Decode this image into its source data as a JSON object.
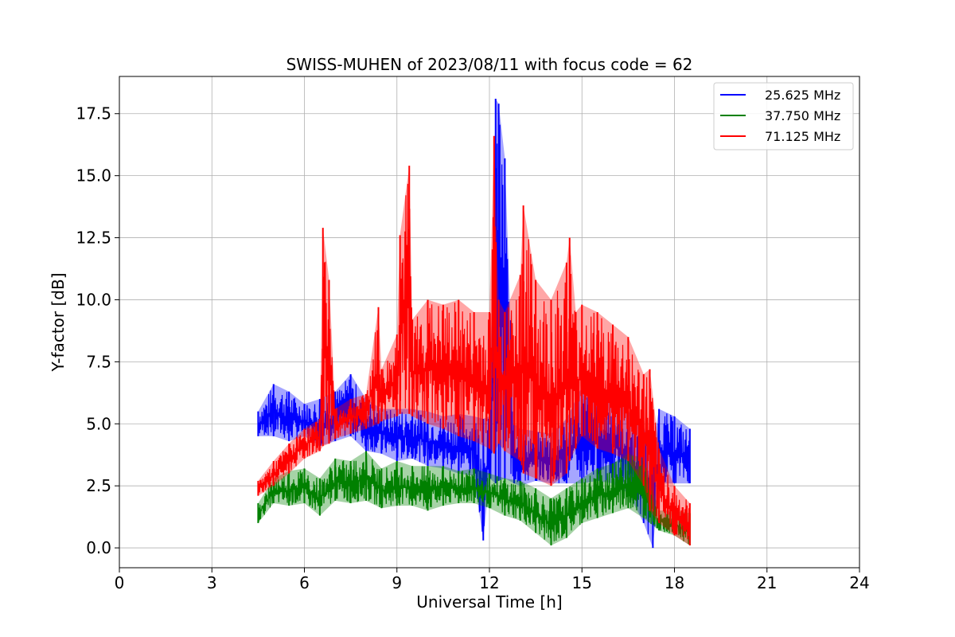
{
  "chart_data": {
    "type": "line",
    "title": "SWISS-MUHEN of 2023/08/11 with focus code = 62",
    "xlabel": "Universal Time [h]",
    "ylabel": "Y-factor [dB]",
    "xlim": [
      0,
      24
    ],
    "ylim": [
      -0.8,
      19.0
    ],
    "xticks": [
      0,
      3,
      6,
      9,
      12,
      15,
      18,
      21,
      24
    ],
    "xtick_labels": [
      "0",
      "3",
      "6",
      "9",
      "12",
      "15",
      "18",
      "21",
      "24"
    ],
    "yticks": [
      0.0,
      2.5,
      5.0,
      7.5,
      10.0,
      12.5,
      15.0,
      17.5
    ],
    "ytick_labels": [
      "0.0",
      "2.5",
      "5.0",
      "7.5",
      "10.0",
      "12.5",
      "15.0",
      "17.5"
    ],
    "grid": true,
    "legend_position": "top-right",
    "series": [
      {
        "name": "25.625 MHz",
        "color": "#0000ff",
        "x": [
          4.5,
          5.0,
          5.5,
          6.0,
          6.5,
          7.0,
          7.5,
          8.0,
          8.5,
          9.0,
          9.5,
          10.0,
          10.5,
          11.0,
          11.5,
          11.8,
          12.0,
          12.2,
          12.3,
          12.5,
          12.8,
          13.0,
          13.5,
          14.0,
          14.5,
          15.0,
          15.5,
          16.0,
          16.5,
          17.0,
          17.3,
          17.5,
          18.0,
          18.5
        ],
        "low": [
          4.5,
          4.5,
          4.3,
          4.5,
          4.1,
          4.3,
          4.5,
          3.9,
          3.8,
          3.5,
          3.6,
          3.3,
          3.2,
          3.0,
          2.9,
          0.3,
          2.8,
          2.6,
          2.7,
          2.8,
          2.6,
          2.5,
          2.7,
          2.6,
          2.6,
          2.6,
          2.7,
          2.6,
          2.2,
          1.0,
          0.0,
          2.6,
          2.6,
          2.6
        ],
        "high": [
          5.5,
          6.6,
          6.3,
          5.8,
          6.0,
          6.3,
          7.0,
          6.0,
          5.6,
          5.6,
          5.6,
          5.5,
          5.3,
          5.4,
          5.3,
          5.2,
          5.3,
          18.1,
          17.9,
          15.7,
          5.0,
          4.8,
          4.7,
          4.6,
          5.2,
          6.5,
          6.2,
          6.0,
          5.5,
          4.8,
          4.2,
          5.6,
          5.3,
          4.8
        ]
      },
      {
        "name": "37.750 MHz",
        "color": "#008000",
        "x": [
          4.5,
          5.0,
          5.5,
          6.0,
          6.5,
          7.0,
          7.5,
          8.0,
          8.5,
          9.0,
          9.5,
          10.0,
          10.5,
          11.0,
          11.5,
          12.0,
          12.5,
          13.0,
          13.5,
          14.0,
          14.5,
          15.0,
          15.5,
          16.0,
          16.5,
          17.0,
          17.5,
          18.0,
          18.5
        ],
        "low": [
          1.0,
          1.8,
          1.7,
          1.8,
          1.3,
          1.9,
          1.8,
          1.9,
          1.6,
          1.7,
          1.7,
          1.5,
          1.7,
          1.8,
          1.8,
          1.6,
          1.3,
          1.1,
          0.6,
          0.1,
          0.4,
          1.0,
          1.2,
          1.4,
          1.6,
          1.2,
          0.7,
          0.5,
          0.1
        ],
        "high": [
          1.8,
          2.8,
          3.1,
          3.2,
          2.8,
          3.6,
          3.5,
          3.9,
          3.2,
          3.5,
          3.3,
          3.3,
          3.3,
          3.1,
          3.2,
          3.0,
          2.8,
          2.7,
          2.4,
          2.0,
          2.4,
          2.8,
          3.2,
          3.4,
          3.8,
          3.6,
          1.5,
          1.5,
          1.4
        ]
      },
      {
        "name": "71.125 MHz",
        "color": "#ff0000",
        "x": [
          4.5,
          5.0,
          5.5,
          6.0,
          6.5,
          6.6,
          6.8,
          7.0,
          7.5,
          8.0,
          8.4,
          8.5,
          9.0,
          9.1,
          9.4,
          9.5,
          10.0,
          10.5,
          11.0,
          11.5,
          12.0,
          12.15,
          12.3,
          12.5,
          13.0,
          13.1,
          13.5,
          14.0,
          14.5,
          14.6,
          14.8,
          15.0,
          15.5,
          16.0,
          16.5,
          17.0,
          17.2,
          17.5,
          18.0,
          18.5
        ],
        "low": [
          2.1,
          2.5,
          3.0,
          3.6,
          3.9,
          4.1,
          4.2,
          4.4,
          4.6,
          4.8,
          5.0,
          5.1,
          5.3,
          5.4,
          5.4,
          5.3,
          5.0,
          4.8,
          4.5,
          4.3,
          4.0,
          3.8,
          4.2,
          3.9,
          3.5,
          3.0,
          2.8,
          2.5,
          3.0,
          3.5,
          4.0,
          4.5,
          4.0,
          3.8,
          3.5,
          2.5,
          1.5,
          1.0,
          0.5,
          0.1
        ],
        "high": [
          2.7,
          3.5,
          4.2,
          4.8,
          5.2,
          12.9,
          10.8,
          5.6,
          6.0,
          6.2,
          9.7,
          7.2,
          8.6,
          12.6,
          15.4,
          9.2,
          10.0,
          9.8,
          10.0,
          9.5,
          9.5,
          16.6,
          10.0,
          9.5,
          11.0,
          13.8,
          10.8,
          10.0,
          11.5,
          12.5,
          9.5,
          9.8,
          9.5,
          9.0,
          8.5,
          7.0,
          7.2,
          4.0,
          2.5,
          1.8
        ]
      }
    ]
  }
}
